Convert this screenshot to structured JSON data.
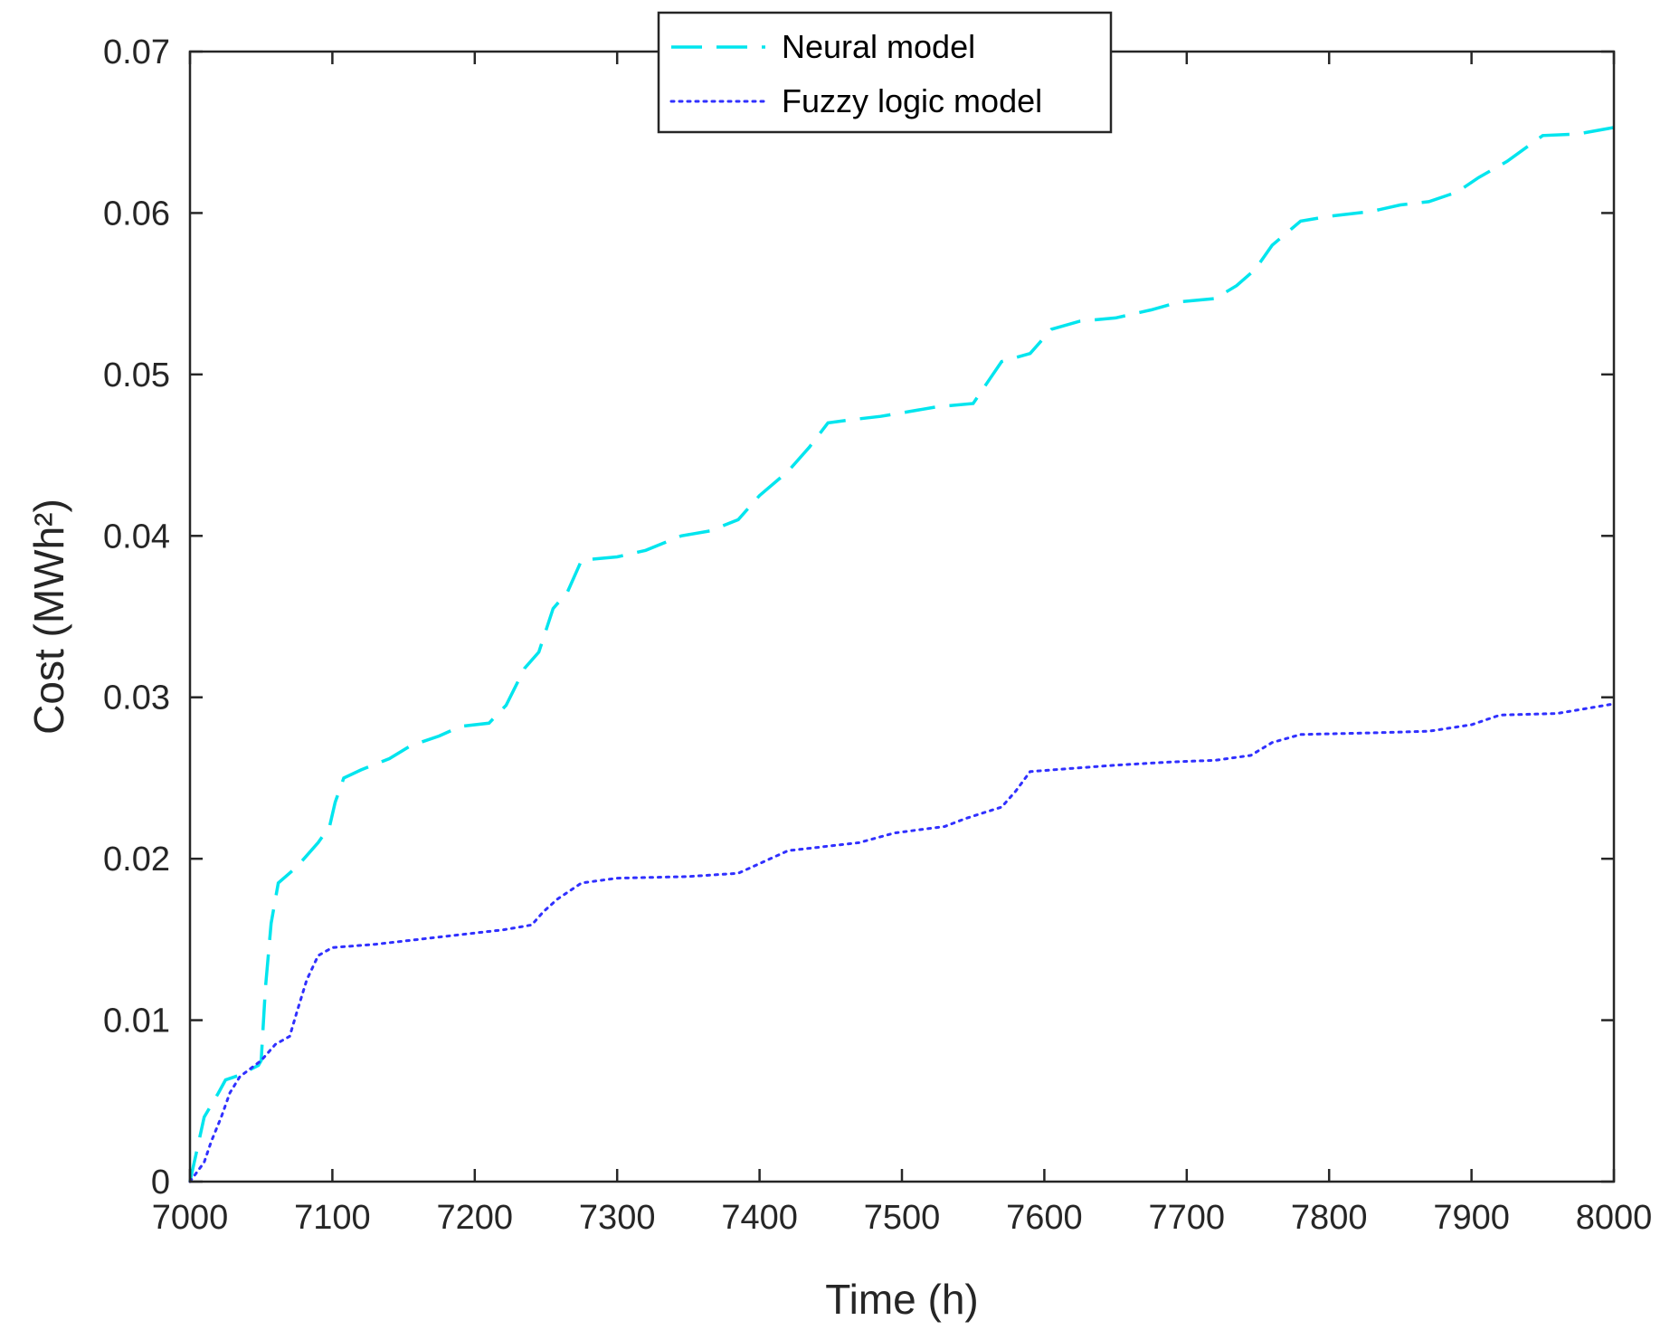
{
  "chart_data": {
    "type": "line",
    "title": "",
    "xlabel": "Time (h)",
    "ylabel": "Cost (MWh²)",
    "xlim": [
      7000,
      8000
    ],
    "ylim": [
      0,
      0.07
    ],
    "x_ticks": [
      7000,
      7100,
      7200,
      7300,
      7400,
      7500,
      7600,
      7700,
      7800,
      7900,
      8000
    ],
    "x_tick_labels": [
      "7000",
      "7100",
      "7200",
      "7300",
      "7400",
      "7500",
      "7600",
      "7700",
      "7800",
      "7900",
      "8000"
    ],
    "y_ticks": [
      0,
      0.01,
      0.02,
      0.03,
      0.04,
      0.05,
      0.06,
      0.07
    ],
    "y_tick_labels": [
      "0",
      "0.01",
      "0.02",
      "0.03",
      "0.04",
      "0.05",
      "0.06",
      "0.07"
    ],
    "grid": false,
    "legend_position": "top-center",
    "series": [
      {
        "name": "Neural model",
        "color": "#00e5ee",
        "line_style": "dashed",
        "points": [
          [
            7000,
            0
          ],
          [
            7005,
            0.002
          ],
          [
            7010,
            0.004
          ],
          [
            7020,
            0.0055
          ],
          [
            7025,
            0.0063
          ],
          [
            7035,
            0.0066
          ],
          [
            7048,
            0.0072
          ],
          [
            7050,
            0.0075
          ],
          [
            7053,
            0.012
          ],
          [
            7057,
            0.016
          ],
          [
            7062,
            0.0185
          ],
          [
            7075,
            0.0195
          ],
          [
            7090,
            0.021
          ],
          [
            7098,
            0.022
          ],
          [
            7102,
            0.0235
          ],
          [
            7108,
            0.025
          ],
          [
            7120,
            0.0255
          ],
          [
            7140,
            0.0262
          ],
          [
            7155,
            0.027
          ],
          [
            7175,
            0.0276
          ],
          [
            7190,
            0.0282
          ],
          [
            7210,
            0.0284
          ],
          [
            7222,
            0.0295
          ],
          [
            7235,
            0.0318
          ],
          [
            7245,
            0.0328
          ],
          [
            7255,
            0.0355
          ],
          [
            7265,
            0.0365
          ],
          [
            7275,
            0.0385
          ],
          [
            7300,
            0.0387
          ],
          [
            7320,
            0.0391
          ],
          [
            7345,
            0.04
          ],
          [
            7365,
            0.0403
          ],
          [
            7385,
            0.041
          ],
          [
            7400,
            0.0425
          ],
          [
            7420,
            0.044
          ],
          [
            7435,
            0.0455
          ],
          [
            7448,
            0.047
          ],
          [
            7465,
            0.0472
          ],
          [
            7485,
            0.0474
          ],
          [
            7505,
            0.0477
          ],
          [
            7525,
            0.048
          ],
          [
            7550,
            0.0482
          ],
          [
            7560,
            0.0495
          ],
          [
            7570,
            0.0508
          ],
          [
            7590,
            0.0513
          ],
          [
            7605,
            0.0528
          ],
          [
            7625,
            0.0533
          ],
          [
            7650,
            0.0535
          ],
          [
            7675,
            0.054
          ],
          [
            7695,
            0.0545
          ],
          [
            7720,
            0.0547
          ],
          [
            7735,
            0.0555
          ],
          [
            7748,
            0.0565
          ],
          [
            7760,
            0.058
          ],
          [
            7780,
            0.0595
          ],
          [
            7800,
            0.0598
          ],
          [
            7830,
            0.0601
          ],
          [
            7850,
            0.0605
          ],
          [
            7870,
            0.0607
          ],
          [
            7890,
            0.0613
          ],
          [
            7905,
            0.0622
          ],
          [
            7925,
            0.0632
          ],
          [
            7950,
            0.0648
          ],
          [
            7975,
            0.0649
          ],
          [
            8000,
            0.0653
          ]
        ]
      },
      {
        "name": "Fuzzy logic model",
        "color": "#3030ff",
        "line_style": "dotted",
        "points": [
          [
            7000,
            0
          ],
          [
            7010,
            0.0012
          ],
          [
            7015,
            0.0025
          ],
          [
            7022,
            0.004
          ],
          [
            7028,
            0.0055
          ],
          [
            7035,
            0.0065
          ],
          [
            7050,
            0.0075
          ],
          [
            7060,
            0.0085
          ],
          [
            7070,
            0.009
          ],
          [
            7075,
            0.0105
          ],
          [
            7082,
            0.0125
          ],
          [
            7090,
            0.014
          ],
          [
            7100,
            0.0145
          ],
          [
            7130,
            0.0147
          ],
          [
            7160,
            0.015
          ],
          [
            7190,
            0.0153
          ],
          [
            7220,
            0.0156
          ],
          [
            7240,
            0.0159
          ],
          [
            7248,
            0.0167
          ],
          [
            7258,
            0.0175
          ],
          [
            7275,
            0.0185
          ],
          [
            7300,
            0.0188
          ],
          [
            7350,
            0.0189
          ],
          [
            7385,
            0.0191
          ],
          [
            7400,
            0.0197
          ],
          [
            7420,
            0.0205
          ],
          [
            7440,
            0.0207
          ],
          [
            7470,
            0.021
          ],
          [
            7495,
            0.0216
          ],
          [
            7530,
            0.022
          ],
          [
            7545,
            0.0225
          ],
          [
            7570,
            0.0232
          ],
          [
            7580,
            0.0242
          ],
          [
            7590,
            0.0254
          ],
          [
            7620,
            0.0256
          ],
          [
            7650,
            0.0258
          ],
          [
            7690,
            0.026
          ],
          [
            7720,
            0.0261
          ],
          [
            7745,
            0.0264
          ],
          [
            7760,
            0.0272
          ],
          [
            7780,
            0.0277
          ],
          [
            7830,
            0.0278
          ],
          [
            7870,
            0.0279
          ],
          [
            7900,
            0.0283
          ],
          [
            7920,
            0.0289
          ],
          [
            7960,
            0.029
          ],
          [
            8000,
            0.0296
          ]
        ]
      }
    ]
  }
}
